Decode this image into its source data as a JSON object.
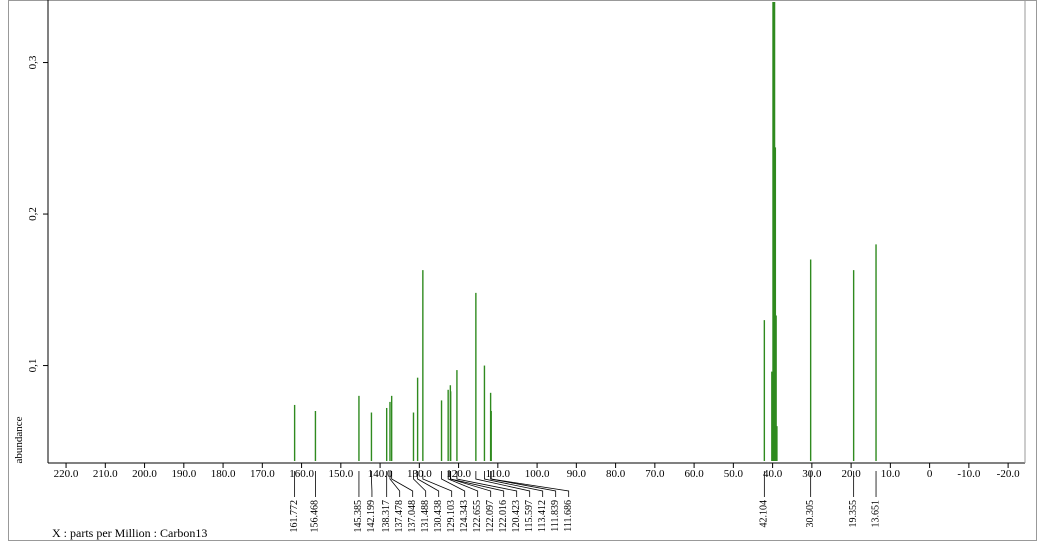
{
  "chart_data": {
    "type": "stick",
    "y_label": "abundance",
    "x_label": "X : parts per Million : Carbon13",
    "color": "#2f8a1f",
    "xlim": [
      224.6,
      -24.3
    ],
    "ylim": [
      0.037,
      0.336
    ],
    "xticks": [
      {
        "value": 220,
        "label": "220.0"
      },
      {
        "value": 210,
        "label": "210.0"
      },
      {
        "value": 200,
        "label": "200.0"
      },
      {
        "value": 190,
        "label": "190.0"
      },
      {
        "value": 180,
        "label": "180.0"
      },
      {
        "value": 170,
        "label": "170.0"
      },
      {
        "value": 160,
        "label": "160.0"
      },
      {
        "value": 150,
        "label": "150.0"
      },
      {
        "value": 140,
        "label": "140.0"
      },
      {
        "value": 130,
        "label": "130.0"
      },
      {
        "value": 120,
        "label": "120.0"
      },
      {
        "value": 110,
        "label": "110.0"
      },
      {
        "value": 100,
        "label": "100.0"
      },
      {
        "value": 90,
        "label": "90.0"
      },
      {
        "value": 80,
        "label": "80.0"
      },
      {
        "value": 70,
        "label": "70.0"
      },
      {
        "value": 60,
        "label": "60.0"
      },
      {
        "value": 50,
        "label": "50.0"
      },
      {
        "value": 40,
        "label": "40.0"
      },
      {
        "value": 30,
        "label": "30.0"
      },
      {
        "value": 20,
        "label": "20.0"
      },
      {
        "value": 10,
        "label": "10.0"
      },
      0,
      {
        "value": -10,
        "label": "-10.0"
      },
      {
        "value": -20,
        "label": "-20.0"
      }
    ],
    "yticks": [
      {
        "value": 0.1,
        "label": "0,1"
      },
      {
        "value": 0.2,
        "label": "0,2"
      },
      {
        "value": 0.3,
        "label": "0,3"
      }
    ],
    "picked_peaks": {
      "x": [
        161.772,
        156.468,
        145.385,
        142.199,
        138.317,
        137.478,
        137.048,
        131.488,
        130.438,
        129.103,
        124.343,
        122.655,
        122.097,
        122.016,
        120.423,
        115.597,
        113.412,
        111.839,
        111.686,
        42.104,
        30.305,
        19.355,
        13.651
      ],
      "values": [
        0.074,
        0.07,
        0.08,
        0.069,
        0.072,
        0.076,
        0.08,
        0.069,
        0.092,
        0.163,
        0.077,
        0.084,
        0.087,
        0.083,
        0.097,
        0.148,
        0.1,
        0.082,
        0.07,
        0.13,
        0.17,
        0.163,
        0.18
      ]
    },
    "other_peaks": {
      "x": [
        40.2,
        39.9,
        39.7,
        39.5,
        39.3,
        39.1,
        38.9
      ],
      "values": [
        0.096,
        0.34,
        0.34,
        0.34,
        0.244,
        0.133,
        0.06
      ]
    }
  }
}
